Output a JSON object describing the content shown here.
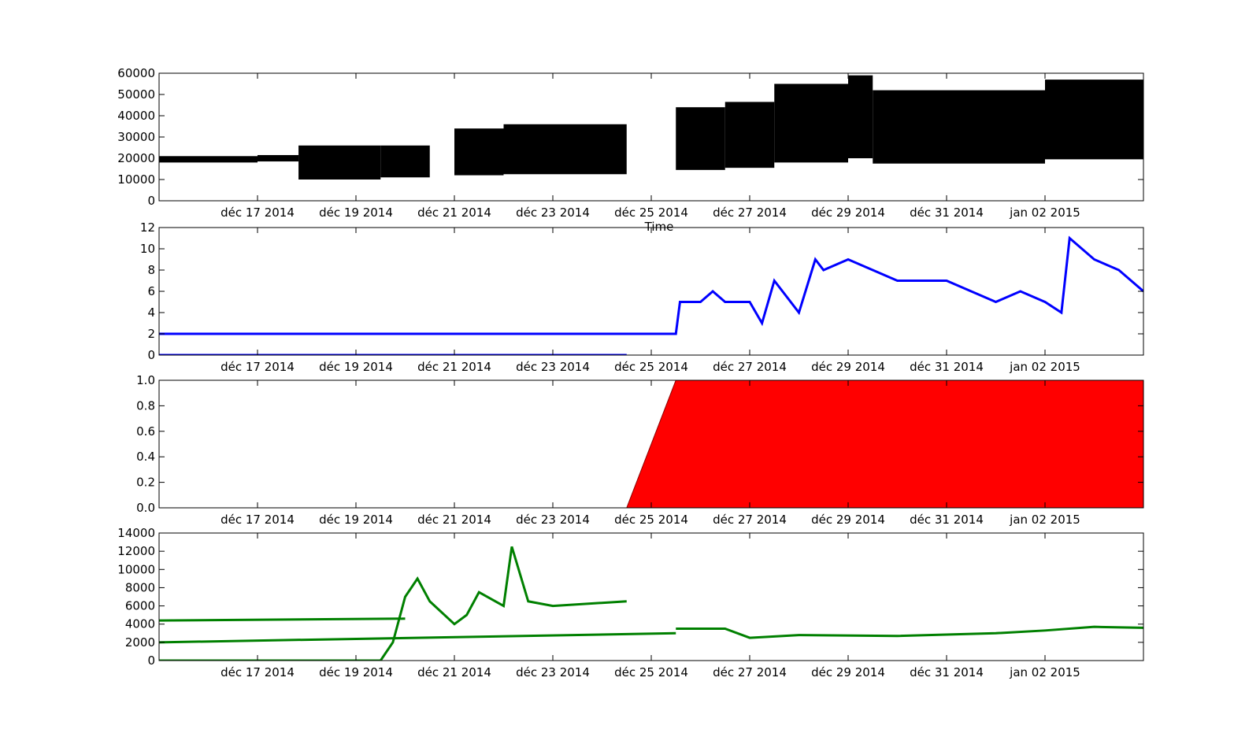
{
  "chart_data": [
    {
      "id": "panel1",
      "type": "line",
      "x_tick_labels": [
        "déc 17 2014",
        "déc 19 2014",
        "déc 21 2014",
        "déc 23 2014",
        "déc 25 2014",
        "déc 27 2014",
        "déc 29 2014",
        "déc 31 2014",
        "jan 02 2015"
      ],
      "xlabel": "Time",
      "ylim": [
        0,
        60000
      ],
      "y_ticks": [
        0,
        10000,
        20000,
        30000,
        40000,
        50000,
        60000
      ],
      "color": "#000000",
      "x_start": "2014-12-15",
      "x_end": "2015-01-04",
      "grid": false,
      "series": [
        {
          "segments": [
            {
              "x_from": "2014-12-15",
              "x_to": "2014-12-17",
              "low": 18000,
              "high": 21000
            },
            {
              "x_from": "2014-12-17",
              "x_to": "2014-12-17 20:00",
              "low": 18500,
              "high": 21500
            },
            {
              "x_from": "2014-12-17 20:00",
              "x_to": "2014-12-19 12:00",
              "low": 10000,
              "high": 26000
            },
            {
              "x_from": "2014-12-19 12:00",
              "x_to": "2014-12-20 12:00",
              "low": 11000,
              "high": 26000
            },
            {
              "x_from": "2014-12-21",
              "x_to": "2014-12-22",
              "low": 12000,
              "high": 34000
            },
            {
              "x_from": "2014-12-22",
              "x_to": "2014-12-24 12:00",
              "low": 12500,
              "high": 36000
            },
            {
              "x_from": "2014-12-25 12:00",
              "x_to": "2014-12-26 12:00",
              "low": 14500,
              "high": 44000
            },
            {
              "x_from": "2014-12-26 12:00",
              "x_to": "2014-12-27 12:00",
              "low": 15500,
              "high": 46500
            },
            {
              "x_from": "2014-12-27 12:00",
              "x_to": "2014-12-29",
              "low": 18000,
              "high": 55000
            },
            {
              "x_from": "2014-12-29",
              "x_to": "2014-12-29 12:00",
              "low": 20000,
              "high": 59000
            },
            {
              "x_from": "2014-12-29 12:00",
              "x_to": "2015-01-02",
              "low": 17500,
              "high": 52000
            },
            {
              "x_from": "2015-01-02",
              "x_to": "2015-01-04",
              "low": 19500,
              "high": 57000
            }
          ]
        }
      ]
    },
    {
      "id": "panel2",
      "type": "line",
      "x_tick_labels": [
        "déc 17 2014",
        "déc 19 2014",
        "déc 21 2014",
        "déc 23 2014",
        "déc 25 2014",
        "déc 27 2014",
        "déc 29 2014",
        "déc 31 2014",
        "jan 02 2015"
      ],
      "ylim": [
        0,
        12
      ],
      "y_ticks": [
        0,
        2,
        4,
        6,
        8,
        10,
        12
      ],
      "color": "#0000ff",
      "grid": false,
      "series": [
        {
          "x": [
            "2014-12-15",
            "2014-12-25 12:00",
            "2014-12-25 14:00",
            "2014-12-26",
            "2014-12-26 06:00",
            "2014-12-26 12:00",
            "2014-12-27",
            "2014-12-27 06:00",
            "2014-12-27 12:00",
            "2014-12-28",
            "2014-12-28 08:00",
            "2014-12-28 12:00",
            "2014-12-29",
            "2014-12-29 12:00",
            "2014-12-30",
            "2014-12-31",
            "2014-12-31 12:00",
            "2015-01-01",
            "2015-01-01 12:00",
            "2015-01-02",
            "2015-01-02 08:00",
            "2015-01-02 12:00",
            "2015-01-03",
            "2015-01-03 12:00",
            "2015-01-04"
          ],
          "y": [
            2,
            2,
            5,
            5,
            6,
            5,
            5,
            3,
            7,
            4,
            9,
            8,
            9,
            8,
            7,
            7,
            6,
            5,
            6,
            5,
            4,
            11,
            9,
            8,
            6
          ]
        },
        {
          "x": [
            "2014-12-15",
            "2014-12-24 12:00"
          ],
          "y": [
            0,
            0
          ]
        }
      ]
    },
    {
      "id": "panel3",
      "type": "area",
      "x_tick_labels": [
        "déc 17 2014",
        "déc 19 2014",
        "déc 21 2014",
        "déc 23 2014",
        "déc 25 2014",
        "déc 27 2014",
        "déc 29 2014",
        "déc 31 2014",
        "jan 02 2015"
      ],
      "ylim": [
        0,
        1.0
      ],
      "y_ticks": [
        0.0,
        0.2,
        0.4,
        0.6,
        0.8,
        1.0
      ],
      "y_tick_labels": [
        "0.0",
        "0.2",
        "0.4",
        "0.6",
        "0.8",
        "1.0"
      ],
      "color": "#ff0000",
      "grid": false,
      "series": [
        {
          "x": [
            "2014-12-15",
            "2014-12-24 12:00",
            "2014-12-25 12:00",
            "2015-01-04"
          ],
          "y": [
            0,
            0,
            1,
            1
          ]
        }
      ]
    },
    {
      "id": "panel4",
      "type": "line",
      "x_tick_labels": [
        "déc 17 2014",
        "déc 19 2014",
        "déc 21 2014",
        "déc 23 2014",
        "déc 25 2014",
        "déc 27 2014",
        "déc 29 2014",
        "déc 31 2014",
        "jan 02 2015"
      ],
      "ylim": [
        0,
        14000
      ],
      "y_ticks": [
        0,
        2000,
        4000,
        6000,
        8000,
        10000,
        12000,
        14000
      ],
      "color": "#008000",
      "grid": false,
      "series": [
        {
          "x": [
            "2014-12-15",
            "2014-12-19 12:00",
            "2014-12-19 18:00",
            "2014-12-20",
            "2014-12-20 06:00",
            "2014-12-20 12:00",
            "2014-12-21",
            "2014-12-21 06:00",
            "2014-12-21 12:00",
            "2014-12-22",
            "2014-12-22 04:00",
            "2014-12-22 12:00",
            "2014-12-23",
            "2014-12-24 12:00"
          ],
          "y": [
            0,
            0,
            2000,
            7000,
            9000,
            6500,
            4000,
            5000,
            7500,
            6000,
            12500,
            6500,
            6000,
            6500
          ]
        },
        {
          "x": [
            "2014-12-25 12:00",
            "2014-12-26 12:00",
            "2014-12-27",
            "2014-12-28",
            "2014-12-30",
            "2015-01-01",
            "2015-01-02",
            "2015-01-03",
            "2015-01-04"
          ],
          "y": [
            3500,
            3500,
            2500,
            2800,
            2700,
            3000,
            3300,
            3700,
            3600
          ]
        },
        {
          "x": [
            "2014-12-15",
            "2014-12-20"
          ],
          "y": [
            4400,
            4600
          ]
        },
        {
          "x": [
            "2014-12-15",
            "2014-12-25 12:00"
          ],
          "y": [
            2000,
            3000
          ]
        }
      ]
    }
  ]
}
